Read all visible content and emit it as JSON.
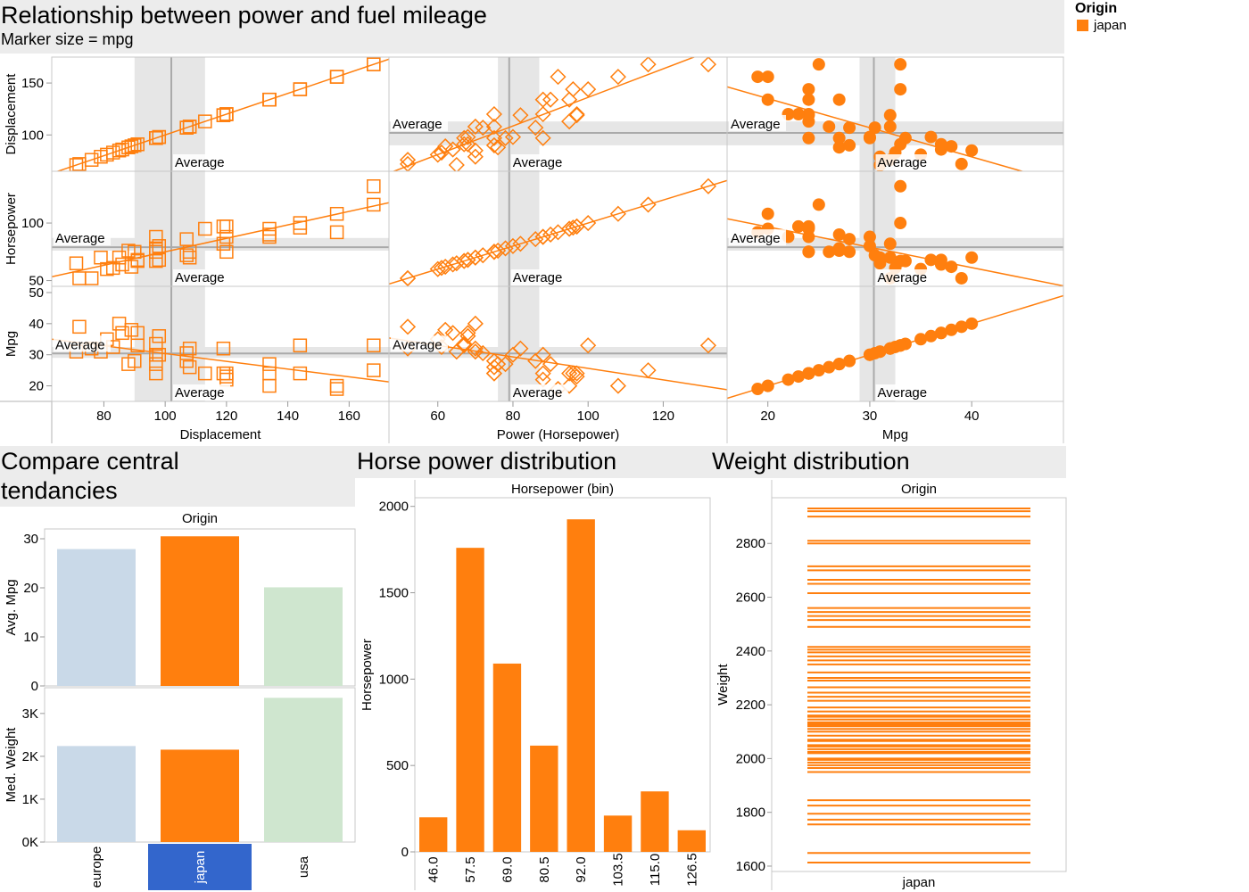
{
  "colors": {
    "europe": "#c9d9e8",
    "japan": "#ff7f0e",
    "usa": "#cfe6cf",
    "selected": "#3366cc",
    "band": "#e6e6e6",
    "avg_line": "#aaaaaa",
    "grid": "#d9d9d9"
  },
  "legend": {
    "title": "Origin",
    "items": [
      {
        "label": "japan",
        "color": "#ff7f0e"
      }
    ]
  },
  "scatter_section": {
    "title": "Relationship between power and fuel mileage",
    "subtitle": "Marker size = mpg"
  },
  "central_section": {
    "title_line1": "Compare central",
    "title_line2": "tendancies"
  },
  "hp_section": {
    "title": "Horse power distribution"
  },
  "weight_section": {
    "title": "Weight distribution"
  },
  "avg_label": "Average",
  "chart_data": [
    {
      "type": "scatter",
      "id": "scatter-matrix",
      "variables": [
        "Displacement",
        "Horsepower",
        "Mpg"
      ],
      "column_labels": [
        "Displacement",
        "Power (Horsepower)",
        "Mpg"
      ],
      "row_labels": [
        "Displacement",
        "Horsepower",
        "Mpg"
      ],
      "markers": [
        "square",
        "diamond",
        "circle"
      ],
      "x_ranges": [
        [
          63,
          173
        ],
        [
          47,
          137
        ],
        [
          16,
          49
        ]
      ],
      "y_ranges": [
        [
          65,
          175
        ],
        [
          45,
          145
        ],
        [
          15,
          52
        ]
      ],
      "x_ticks": [
        [
          80,
          100,
          120,
          140,
          160
        ],
        [
          60,
          80,
          100,
          120
        ],
        [
          20,
          30,
          40
        ]
      ],
      "y_ticks": [
        [
          100,
          150
        ],
        [
          50,
          100
        ],
        [
          20,
          30,
          40,
          50
        ]
      ],
      "averages": {
        "displacement": 102,
        "horsepower": 79,
        "mpg": 30.4
      },
      "avg_bands": {
        "displacement": [
          90,
          113
        ],
        "horsepower": [
          76,
          87
        ],
        "mpg": [
          29,
          32.5
        ]
      },
      "points": [
        [
          71,
          65,
          31
        ],
        [
          72,
          52,
          39
        ],
        [
          76,
          52,
          32
        ],
        [
          79,
          70,
          31
        ],
        [
          81,
          60,
          35
        ],
        [
          83,
          61,
          32.5
        ],
        [
          85,
          70,
          40
        ],
        [
          86,
          64,
          37
        ],
        [
          88,
          76,
          27
        ],
        [
          89,
          62,
          38
        ],
        [
          90,
          75,
          28
        ],
        [
          91,
          67,
          33
        ],
        [
          91,
          68,
          37
        ],
        [
          97,
          67,
          33.5
        ],
        [
          97,
          75,
          24
        ],
        [
          97,
          78,
          27
        ],
        [
          97,
          88,
          30
        ],
        [
          98,
          68,
          36
        ],
        [
          98,
          80,
          30
        ],
        [
          107,
          72,
          30.5
        ],
        [
          107,
          86,
          28
        ],
        [
          108,
          70,
          32
        ],
        [
          108,
          75,
          26
        ],
        [
          113,
          95,
          24
        ],
        [
          119,
          82,
          32
        ],
        [
          119,
          97,
          24
        ],
        [
          120,
          75,
          24
        ],
        [
          120,
          88,
          22
        ],
        [
          120,
          97,
          23
        ],
        [
          134,
          88,
          24
        ],
        [
          134,
          90,
          27
        ],
        [
          134,
          95,
          20
        ],
        [
          144,
          96,
          24
        ],
        [
          144,
          100,
          33
        ],
        [
          156,
          92,
          19
        ],
        [
          156,
          108,
          20
        ],
        [
          168,
          116,
          25
        ],
        [
          168,
          132,
          33
        ]
      ]
    },
    {
      "type": "bar",
      "id": "central-tendencies",
      "column_header": "Origin",
      "categories": [
        "europe",
        "japan",
        "usa"
      ],
      "selected": "japan",
      "series": [
        {
          "name": "Avg. Mpg",
          "values": [
            27.9,
            30.5,
            20.1
          ]
        },
        {
          "name": "Med. Weight",
          "values": [
            2240,
            2155,
            3365
          ]
        }
      ],
      "ylim_top": [
        0,
        32
      ],
      "ylim_bottom": [
        0,
        3600
      ],
      "y_ticks_top": [
        {
          "v": 0,
          "label": "0"
        },
        {
          "v": 10,
          "label": "10"
        },
        {
          "v": 20,
          "label": "20"
        },
        {
          "v": 30,
          "label": "30"
        }
      ],
      "y_ticks_bottom": [
        {
          "v": 0,
          "label": "0K"
        },
        {
          "v": 1000,
          "label": "1K"
        },
        {
          "v": 2000,
          "label": "2K"
        },
        {
          "v": 3000,
          "label": "3K"
        }
      ]
    },
    {
      "type": "bar",
      "id": "hp-distribution",
      "column_header": "Horsepower (bin)",
      "ylabel": "Horsepower",
      "categories": [
        "46.0",
        "57.5",
        "69.0",
        "80.5",
        "92.0",
        "103.5",
        "115.0",
        "126.5"
      ],
      "values": [
        200,
        1760,
        1090,
        615,
        1925,
        210,
        350,
        125
      ],
      "ylim": [
        0,
        2050
      ],
      "y_ticks": [
        0,
        500,
        1000,
        1500,
        2000
      ]
    },
    {
      "type": "strip",
      "id": "weight-distribution",
      "column_header": "Origin",
      "category": "japan",
      "ylabel": "Weight",
      "ylim": [
        1580,
        2970
      ],
      "y_ticks": [
        1600,
        1800,
        2000,
        2200,
        2400,
        2600,
        2800
      ],
      "values": [
        1613,
        1649,
        1755,
        1773,
        1795,
        1825,
        1845,
        1950,
        1965,
        1975,
        1985,
        1995,
        2000,
        2020,
        2025,
        2035,
        2045,
        2050,
        2065,
        2070,
        2085,
        2100,
        2110,
        2120,
        2125,
        2130,
        2135,
        2145,
        2155,
        2160,
        2175,
        2190,
        2215,
        2230,
        2245,
        2265,
        2290,
        2300,
        2320,
        2350,
        2365,
        2380,
        2395,
        2405,
        2415,
        2490,
        2515,
        2530,
        2545,
        2560,
        2615,
        2650,
        2665,
        2700,
        2715,
        2800,
        2810,
        2900,
        2920,
        2930
      ]
    }
  ]
}
